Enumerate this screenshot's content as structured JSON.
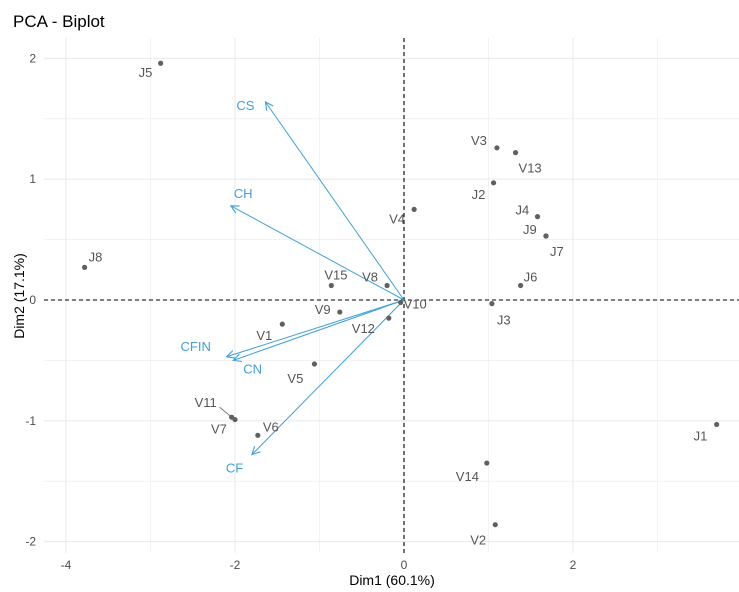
{
  "chart_data": {
    "type": "scatter",
    "title": "PCA - Biplot",
    "xlabel": "Dim1 (60.1%)",
    "ylabel": "Dim2 (17.1%)",
    "xlim": [
      -4,
      4
    ],
    "ylim": [
      -2,
      2
    ],
    "x_ticks": [
      -4,
      -2,
      0,
      2
    ],
    "y_ticks": [
      -2,
      -1,
      0,
      1,
      2
    ],
    "grid": true,
    "colors": {
      "individuals": "#606060",
      "variables": "#3fa1d8",
      "grid": "#ebebeb",
      "text": "#555555"
    },
    "individuals": [
      {
        "label": "J5",
        "x": -2.88,
        "y": 1.96
      },
      {
        "label": "J8",
        "x": -3.78,
        "y": 0.27
      },
      {
        "label": "V3",
        "x": 1.1,
        "y": 1.26
      },
      {
        "label": "V13",
        "x": 1.32,
        "y": 1.22
      },
      {
        "label": "J2",
        "x": 1.06,
        "y": 0.97
      },
      {
        "label": "V4",
        "x": 0.12,
        "y": 0.75
      },
      {
        "label": "J4",
        "x": 1.58,
        "y": 0.69
      },
      {
        "label": "J9",
        "x": 1.68,
        "y": 0.53
      },
      {
        "label": "J7",
        "x": 1.68,
        "y": 0.53
      },
      {
        "label": "J6",
        "x": 1.38,
        "y": 0.12
      },
      {
        "label": "V15",
        "x": -0.86,
        "y": 0.12
      },
      {
        "label": "V8",
        "x": -0.2,
        "y": 0.12
      },
      {
        "label": "V9",
        "x": -0.76,
        "y": -0.1
      },
      {
        "label": "V10",
        "x": -0.04,
        "y": -0.02
      },
      {
        "label": "J3",
        "x": 1.04,
        "y": -0.03
      },
      {
        "label": "V12",
        "x": -0.18,
        "y": -0.15
      },
      {
        "label": "V1",
        "x": -1.44,
        "y": -0.2
      },
      {
        "label": "V5",
        "x": -1.06,
        "y": -0.53
      },
      {
        "label": "V11",
        "x": -2.04,
        "y": -0.97
      },
      {
        "label": "V7",
        "x": -2.0,
        "y": -0.99
      },
      {
        "label": "V6",
        "x": -1.73,
        "y": -1.12
      },
      {
        "label": "V14",
        "x": 0.98,
        "y": -1.35
      },
      {
        "label": "V2",
        "x": 1.08,
        "y": -1.86
      },
      {
        "label": "J1",
        "x": 3.7,
        "y": -1.03
      }
    ],
    "variables": [
      {
        "label": "CS",
        "x": -1.64,
        "y": 1.64
      },
      {
        "label": "CH",
        "x": -2.05,
        "y": 0.78
      },
      {
        "label": "CFIN",
        "x": -2.1,
        "y": -0.47
      },
      {
        "label": "CN",
        "x": -2.02,
        "y": -0.5
      },
      {
        "label": "CF",
        "x": -1.8,
        "y": -1.28
      }
    ]
  }
}
